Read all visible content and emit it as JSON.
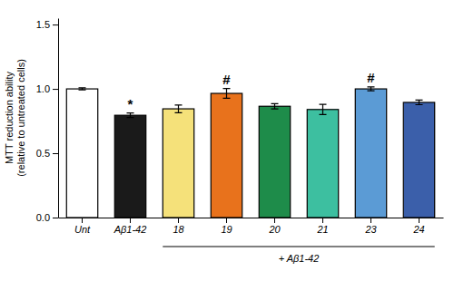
{
  "chart_data": {
    "type": "bar",
    "categories": [
      "Unt",
      "Aβ1-42",
      "18",
      "19",
      "20",
      "21",
      "23",
      "24"
    ],
    "values": [
      1.0,
      0.795,
      0.845,
      0.965,
      0.865,
      0.84,
      1.0,
      0.895
    ],
    "errors": [
      0.008,
      0.018,
      0.03,
      0.038,
      0.02,
      0.04,
      0.015,
      0.018
    ],
    "colors": [
      "#ffffff",
      "#1a1a1a",
      "#f5e17a",
      "#e8721c",
      "#1e8c4a",
      "#3dbfa0",
      "#5b9bd5",
      "#3b5faa"
    ],
    "ylabel": "MTT reduction ability\n(relative to untreated cells)",
    "ylim": [
      0,
      1.55
    ],
    "yticks": [
      {
        "value": 0,
        "label": "0.0"
      },
      0.5,
      {
        "value": 1,
        "label": "1.0"
      },
      1.5
    ],
    "annotations": [
      {
        "category": "Aβ1-42",
        "text": "*"
      },
      {
        "category": "19",
        "text": "#"
      },
      {
        "category": "23",
        "text": "#"
      }
    ],
    "bracket": {
      "start": "18",
      "end": "24",
      "label": "+ Aβ1-42"
    }
  }
}
